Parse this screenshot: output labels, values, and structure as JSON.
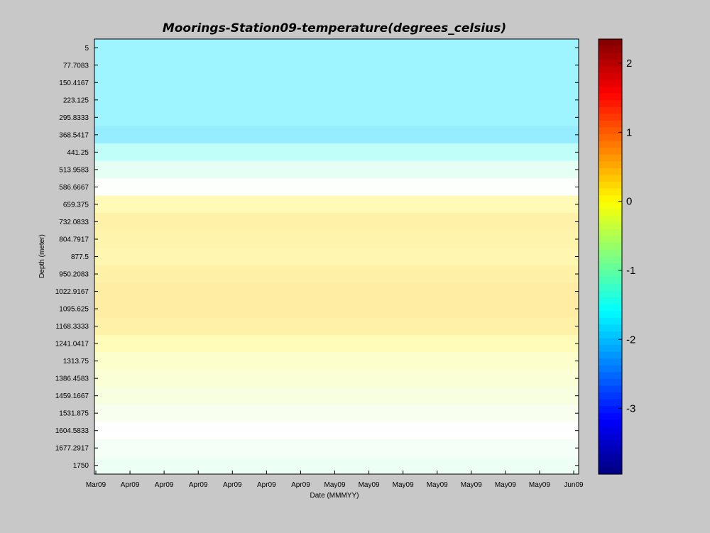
{
  "chart_data": {
    "type": "heatmap",
    "title": "Moorings-Station09-temperature(degrees_celsius)",
    "xlabel": "Date (MMMYY)",
    "ylabel": "Depth (meter)",
    "x_tick_labels": [
      "Mar09",
      "Apr09",
      "Apr09",
      "Apr09",
      "Apr09",
      "Apr09",
      "Apr09",
      "May09",
      "May09",
      "May09",
      "May09",
      "May09",
      "May09",
      "May09",
      "Jun09"
    ],
    "y_tick_labels": [
      "5",
      "77.7083",
      "150.4167",
      "223.125",
      "295.8333",
      "368.5417",
      "441.25",
      "513.9583",
      "586.6667",
      "659.375",
      "732.0833",
      "804.7917",
      "877.5",
      "950.2083",
      "1022.9167",
      "1095.625",
      "1168.3333",
      "1241.0417",
      "1313.75",
      "1386.4583",
      "1459.1667",
      "1531.875",
      "1604.5833",
      "1677.2917",
      "1750"
    ],
    "depths": [
      5,
      77.7083,
      150.4167,
      223.125,
      295.8333,
      368.5417,
      441.25,
      513.9583,
      586.6667,
      659.375,
      732.0833,
      804.7917,
      877.5,
      950.2083,
      1022.9167,
      1095.625,
      1168.3333,
      1241.0417,
      1313.75,
      1386.4583,
      1459.1667,
      1531.875,
      1604.5833,
      1677.2917,
      1750
    ],
    "temperature_by_depth": [
      -1.75,
      -1.75,
      -1.75,
      -1.75,
      -1.75,
      -1.85,
      -1.45,
      -1.1,
      -0.75,
      0.1,
      0.25,
      0.2,
      0.15,
      0.25,
      0.3,
      0.3,
      0.25,
      0.05,
      -0.1,
      -0.2,
      -0.3,
      -0.45,
      -0.7,
      -0.9,
      -1.0
    ],
    "colorbar": {
      "ticks": [
        2,
        1,
        0,
        -1,
        -2,
        -3
      ],
      "range": [
        -3.95,
        2.35
      ],
      "colormap": "jet"
    },
    "grid": false,
    "legend": "none"
  }
}
